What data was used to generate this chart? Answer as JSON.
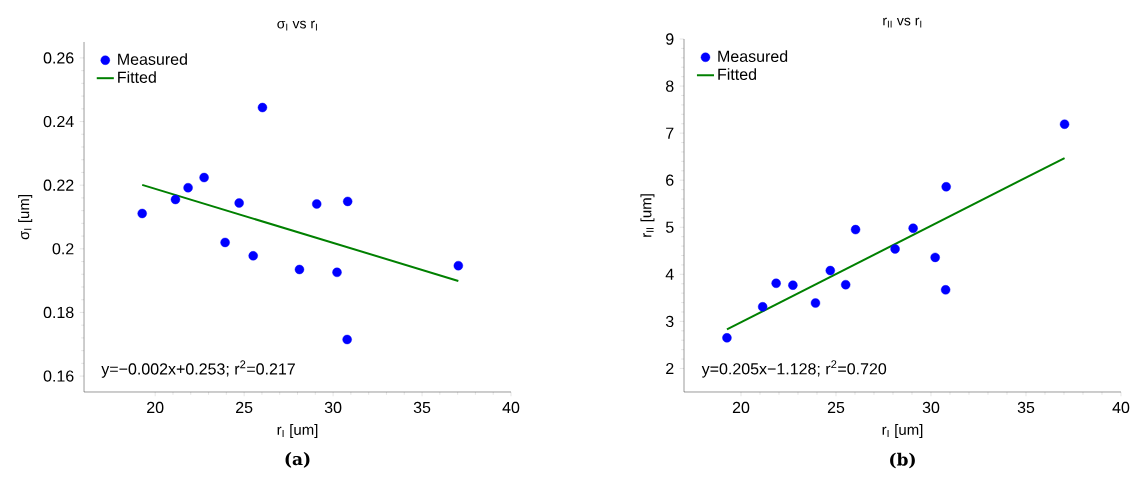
{
  "chart_data": [
    {
      "type": "scatter",
      "title": "σ$_{I}$ vs r$_{I}$",
      "xlabel": "r$_{I}$ [um]",
      "ylabel": "σ$_{I}$ [um]",
      "xlim": [
        16,
        40
      ],
      "ylim": [
        0.155,
        0.265
      ],
      "xticks": [
        20,
        25,
        30,
        35,
        40
      ],
      "yticks": [
        0.16,
        0.18,
        0.2,
        0.22,
        0.24,
        0.26
      ],
      "legend": "top left",
      "annotations": [
        "y=−0.002x+0.253;  r$^{2}$=0.217",
        "(a)"
      ],
      "series": [
        {
          "name": "Measured",
          "marker": "circle",
          "color": "#0000ff",
          "x": [
            19.27,
            21.14,
            21.85,
            22.75,
            26.03,
            24.72,
            23.93,
            25.51,
            28.11,
            29.08,
            30.82,
            30.22,
            30.79,
            37.04
          ],
          "values": [
            0.2111,
            0.2155,
            0.2192,
            0.2224,
            0.2444,
            0.2144,
            0.202,
            0.1978,
            0.1935,
            0.2141,
            0.2149,
            0.1926,
            0.1715,
            0.1947
          ]
        },
        {
          "name": "Fitted",
          "type": "line",
          "marker": "none",
          "color": "#008000",
          "x": [
            19.27,
            37.04
          ],
          "values": [
            0.2201,
            0.1899
          ]
        }
      ]
    },
    {
      "type": "scatter",
      "title": "r$_{II}$ vs r$_{I}$",
      "xlabel": "r$_{I}$ [um]",
      "ylabel": "r$_{II}$ [um]",
      "xlim": [
        17,
        40
      ],
      "ylim": [
        1.5,
        9
      ],
      "xticks": [
        20,
        25,
        30,
        35,
        40
      ],
      "yticks": [
        2,
        3,
        4,
        5,
        6,
        7,
        8,
        9
      ],
      "legend": "top left",
      "annotations": [
        "y=0.205x−1.128;  r$^{2}$=0.720",
        "(b)"
      ],
      "series": [
        {
          "name": "Measured",
          "marker": "circle",
          "color": "#0000ff",
          "x": [
            19.26,
            21.14,
            21.85,
            22.73,
            23.92,
            24.7,
            25.51,
            26.03,
            28.11,
            29.06,
            30.22,
            30.8,
            30.77,
            37.03
          ],
          "values": [
            2.65,
            3.31,
            3.81,
            3.77,
            3.39,
            4.08,
            3.78,
            4.95,
            4.54,
            4.98,
            4.36,
            5.86,
            3.67,
            7.19
          ]
        },
        {
          "name": "Fitted",
          "type": "line",
          "marker": "none",
          "color": "#008000",
          "x": [
            19.26,
            37.03
          ],
          "values": [
            2.83,
            6.47
          ]
        }
      ]
    }
  ]
}
